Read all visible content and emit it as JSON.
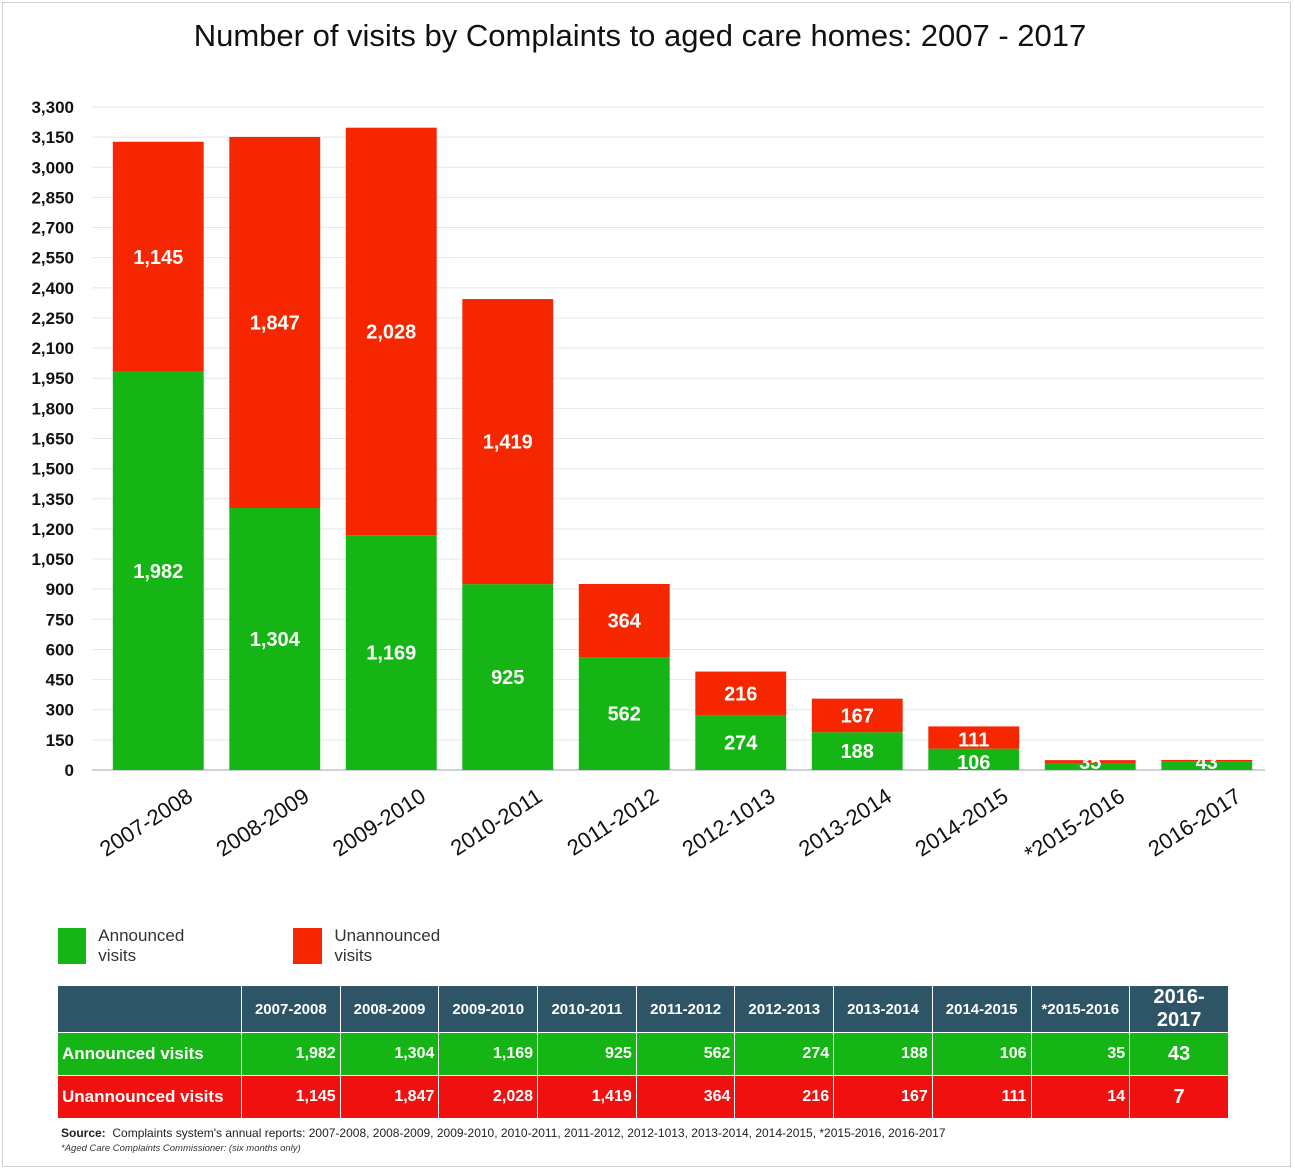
{
  "chart_data": {
    "type": "bar",
    "stacked": true,
    "title": "Number of visits by Complaints to aged care homes: 2007 - 2017",
    "categories": [
      "2007-2008",
      "2008-2009",
      "2009-2010",
      "2010-2011",
      "2011-2012",
      "2012-1013",
      "2013-2014",
      "2014-2015",
      "*2015-2016",
      "2016-2017"
    ],
    "series": [
      {
        "name": "Announced visits",
        "color": "#14b514",
        "values": [
          1982,
          1304,
          1169,
          925,
          562,
          274,
          188,
          106,
          35,
          43
        ],
        "labels": [
          "1,982",
          "1,304",
          "1,169",
          "925",
          "562",
          "274",
          "188",
          "106",
          "35",
          "43"
        ]
      },
      {
        "name": "Unannounced visits",
        "color": "#f52600",
        "values": [
          1145,
          1847,
          2028,
          1419,
          364,
          216,
          167,
          111,
          14,
          7
        ],
        "labels": [
          "1,145",
          "1,847",
          "2,028",
          "1,419",
          "364",
          "216",
          "167",
          "111",
          "14",
          "7"
        ]
      }
    ],
    "ylim": [
      0,
      3300
    ],
    "yticks": [
      0,
      150,
      300,
      450,
      600,
      750,
      900,
      1050,
      1200,
      1350,
      1500,
      1650,
      1800,
      1950,
      2100,
      2250,
      2400,
      2550,
      2700,
      2850,
      3000,
      3150,
      3300
    ],
    "ytick_labels": [
      "0",
      "150",
      "300",
      "450",
      "600",
      "750",
      "900",
      "1,050",
      "1,200",
      "1,350",
      "1,500",
      "1,650",
      "1,800",
      "1,950",
      "2,100",
      "2,250",
      "2,400",
      "2,550",
      "2,700",
      "2,850",
      "3,000",
      "3,150",
      "3,300"
    ],
    "grid": true,
    "legend": "bottom-left"
  },
  "legend": {
    "announced": "Announced visits",
    "unannounced": "Unannounced visits"
  },
  "table": {
    "headers": [
      "2007-2008",
      "2008-2009",
      "2009-2010",
      "2010-2011",
      "2011-2012",
      "2012-2013",
      "2013-2014",
      "2014-2015",
      "*2015-2016",
      "2016-2017"
    ],
    "announced_label": "Announced visits",
    "announced": [
      "1,982",
      "1,304",
      "1,169",
      "925",
      "562",
      "274",
      "188",
      "106",
      "35",
      "43"
    ],
    "unannounced_label": "Unannounced visits",
    "unannounced": [
      "1,145",
      "1,847",
      "2,028",
      "1,419",
      "364",
      "216",
      "167",
      "111",
      "14",
      "7"
    ]
  },
  "source": {
    "label": "Source:",
    "text": "Complaints system's annual reports: 2007-2008, 2008-2009, 2009-2010, 2010-2011, 2011-2012, 2012-1013, 2013-2014, 2014-2015, *2015-2016, 2016-2017",
    "footnote": "*Aged Care Complaints Commissioner: (six months only)"
  }
}
